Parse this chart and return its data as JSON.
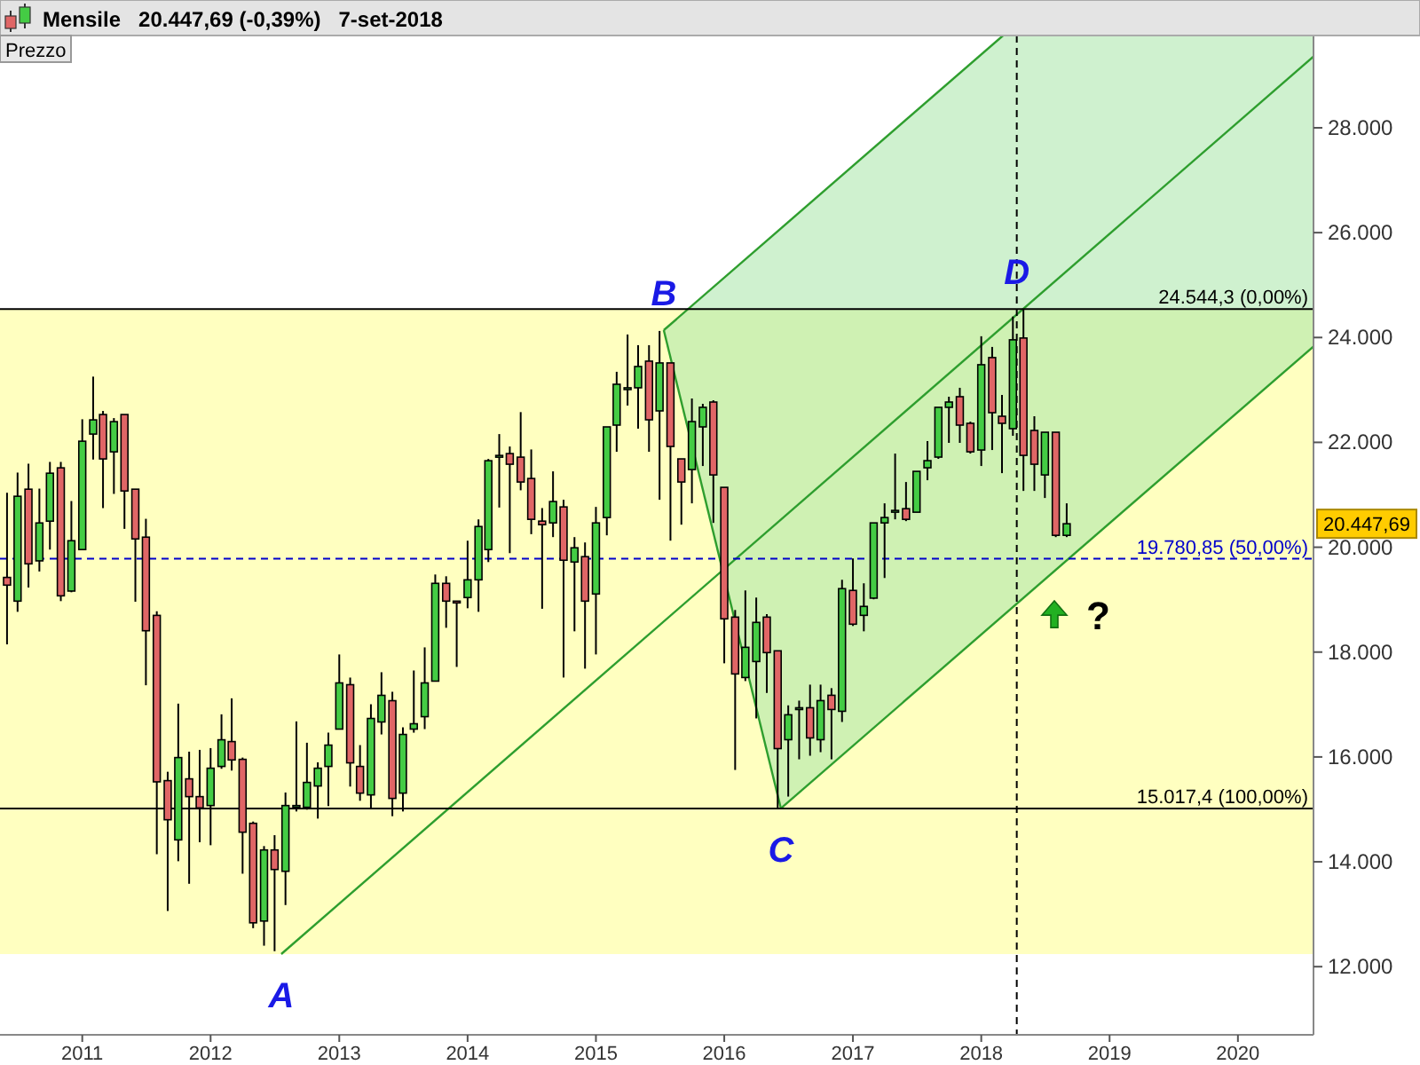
{
  "chart_data": {
    "type": "candlestick",
    "title": "Mensile   20.447,69 (-0,39%)   7-set-2018",
    "ylabel": "Prezzo",
    "x": [
      "2010-06",
      "2010-07",
      "2010-08",
      "2010-09",
      "2010-10",
      "2010-11",
      "2010-12",
      "2011-01",
      "2011-02",
      "2011-03",
      "2011-04",
      "2011-05",
      "2011-06",
      "2011-07",
      "2011-08",
      "2011-09",
      "2011-10",
      "2011-11",
      "2011-12",
      "2012-01",
      "2012-02",
      "2012-03",
      "2012-04",
      "2012-05",
      "2012-06",
      "2012-07",
      "2012-08",
      "2012-09",
      "2012-10",
      "2012-11",
      "2012-12",
      "2013-01",
      "2013-02",
      "2013-03",
      "2013-04",
      "2013-05",
      "2013-06",
      "2013-07",
      "2013-08",
      "2013-09",
      "2013-10",
      "2013-11",
      "2013-12",
      "2014-01",
      "2014-02",
      "2014-03",
      "2014-04",
      "2014-05",
      "2014-06",
      "2014-07",
      "2014-08",
      "2014-09",
      "2014-10",
      "2014-11",
      "2014-12",
      "2015-01",
      "2015-02",
      "2015-03",
      "2015-04",
      "2015-05",
      "2015-06",
      "2015-07",
      "2015-08",
      "2015-09",
      "2015-10",
      "2015-11",
      "2015-12",
      "2016-01",
      "2016-02",
      "2016-03",
      "2016-04",
      "2016-05",
      "2016-06",
      "2016-07",
      "2016-08",
      "2016-09",
      "2016-10",
      "2016-11",
      "2016-12",
      "2017-01",
      "2017-02",
      "2017-03",
      "2017-04",
      "2017-05",
      "2017-06",
      "2017-07",
      "2017-08",
      "2017-09",
      "2017-10",
      "2017-11",
      "2017-12",
      "2018-01",
      "2018-02",
      "2018-03",
      "2018-04",
      "2018-05",
      "2018-06",
      "2018-07",
      "2018-08",
      "2018-09"
    ],
    "ohlc": [
      [
        19424,
        21039,
        18147,
        19277
      ],
      [
        18972,
        21424,
        18768,
        20972
      ],
      [
        21107,
        21593,
        19231,
        19683
      ],
      [
        19740,
        21118,
        19537,
        20463
      ],
      [
        20497,
        21627,
        19955,
        21412
      ],
      [
        21514,
        21627,
        18972,
        19073
      ],
      [
        19164,
        20881,
        19141,
        20124
      ],
      [
        19955,
        22441,
        19955,
        22022
      ],
      [
        22158,
        23254,
        21672,
        22429
      ],
      [
        22531,
        22599,
        20746,
        21684
      ],
      [
        21819,
        22463,
        21017,
        22395
      ],
      [
        22531,
        22531,
        20350,
        21073
      ],
      [
        21107,
        21107,
        18960,
        20158
      ],
      [
        20192,
        20542,
        17367,
        18407
      ],
      [
        18700,
        18779,
        14146,
        15525
      ],
      [
        15548,
        15717,
        13062,
        14802
      ],
      [
        14418,
        17017,
        14011,
        15988
      ],
      [
        15582,
        16101,
        13581,
        15243
      ],
      [
        15243,
        16135,
        14373,
        15028
      ],
      [
        15073,
        16169,
        14316,
        15785
      ],
      [
        15819,
        16813,
        15774,
        16327
      ],
      [
        16293,
        17118,
        15740,
        15943
      ],
      [
        15954,
        15988,
        13773,
        14565
      ],
      [
        14734,
        14768,
        12734,
        12836
      ],
      [
        12870,
        14300,
        12400,
        14226
      ],
      [
        14226,
        14508,
        12295,
        13853
      ],
      [
        13819,
        15322,
        13175,
        15073
      ],
      [
        15040,
        16678,
        14960,
        15073
      ],
      [
        15040,
        16271,
        14994,
        15514
      ],
      [
        15446,
        15898,
        14824,
        15785
      ],
      [
        15819,
        16463,
        15062,
        16226
      ],
      [
        16531,
        17955,
        16531,
        17412
      ],
      [
        17378,
        17514,
        15435,
        15887
      ],
      [
        15819,
        16226,
        15164,
        15310
      ],
      [
        15276,
        17005,
        15028,
        16734
      ],
      [
        16667,
        17616,
        16429,
        17175
      ],
      [
        17073,
        17243,
        14870,
        15209
      ],
      [
        15310,
        16565,
        14960,
        16429
      ],
      [
        16531,
        17649,
        16463,
        16633
      ],
      [
        16768,
        18090,
        16531,
        17412
      ],
      [
        17446,
        19480,
        17446,
        19311
      ],
      [
        19311,
        19446,
        18463,
        18972
      ],
      [
        18972,
        18972,
        17717,
        18960
      ],
      [
        19040,
        20124,
        18836,
        19378
      ],
      [
        19378,
        20531,
        18768,
        20395
      ],
      [
        19955,
        21684,
        19717,
        21650
      ],
      [
        21717,
        22158,
        20757,
        21751
      ],
      [
        21786,
        21921,
        19887,
        21583
      ],
      [
        21718,
        22577,
        21086,
        21244
      ],
      [
        21311,
        21865,
        20249,
        20532
      ],
      [
        20498,
        20747,
        18826,
        20430
      ],
      [
        20464,
        21447,
        20193,
        20871
      ],
      [
        20769,
        20905,
        17515,
        19752
      ],
      [
        19718,
        20193,
        18396,
        19989
      ],
      [
        19820,
        20091,
        17684,
        18972
      ],
      [
        19108,
        20769,
        17955,
        20464
      ],
      [
        20566,
        22295,
        20227,
        22295
      ],
      [
        22329,
        23346,
        21820,
        23108
      ],
      [
        23007,
        24058,
        22702,
        23041
      ],
      [
        23041,
        23854,
        22261,
        23447
      ],
      [
        23549,
        23854,
        21820,
        22430
      ],
      [
        22600,
        24125,
        20905,
        23515
      ],
      [
        23515,
        23515,
        20125,
        21922
      ],
      [
        21685,
        21685,
        20430,
        21244
      ],
      [
        21481,
        22837,
        20837,
        22396
      ],
      [
        22295,
        22735,
        21549,
        22668
      ],
      [
        22769,
        22803,
        20464,
        21379
      ],
      [
        21142,
        21142,
        17786,
        18634
      ],
      [
        18667,
        18803,
        15752,
        17583
      ],
      [
        17515,
        19176,
        17447,
        18091
      ],
      [
        17820,
        19040,
        16735,
        18566
      ],
      [
        18667,
        18724,
        17221,
        17990
      ],
      [
        18024,
        18024,
        15020,
        16159
      ],
      [
        16329,
        16984,
        15244,
        16804
      ],
      [
        16905,
        17074,
        15955,
        16938
      ],
      [
        16938,
        17379,
        16023,
        16363
      ],
      [
        16329,
        17379,
        16091,
        17074
      ],
      [
        17176,
        17312,
        15955,
        16905
      ],
      [
        16871,
        19379,
        16667,
        19210
      ],
      [
        19176,
        19786,
        18498,
        18532
      ],
      [
        18701,
        19312,
        18396,
        18871
      ],
      [
        19029,
        20464,
        19007,
        20464
      ],
      [
        20464,
        20837,
        19413,
        20566
      ],
      [
        20690,
        21786,
        20532,
        20702
      ],
      [
        20735,
        21244,
        20498,
        20532
      ],
      [
        20668,
        21447,
        20668,
        21447
      ],
      [
        21515,
        22024,
        21278,
        21651
      ],
      [
        21719,
        22668,
        21685,
        22668
      ],
      [
        22668,
        22871,
        21990,
        22769
      ],
      [
        22871,
        23041,
        21990,
        22329
      ],
      [
        22363,
        22396,
        21786,
        21820
      ],
      [
        21854,
        24024,
        21549,
        23481
      ],
      [
        23617,
        23820,
        21854,
        22566
      ],
      [
        22498,
        22905,
        21413,
        22363
      ],
      [
        22261,
        24400,
        22125,
        23956
      ],
      [
        23990,
        24544.3,
        21074,
        21752
      ],
      [
        22227,
        22498,
        21074,
        21583
      ],
      [
        21379,
        22193,
        20939,
        22193
      ],
      [
        22193,
        22193,
        20193,
        20227
      ],
      [
        20227,
        20837,
        20193,
        20447.69
      ]
    ],
    "series": [
      {
        "type": "line",
        "color": "#2e9e2e",
        "x": [
          "2012-07-20",
          "2020-08-03"
        ],
        "values": [
          12240,
          29360
        ]
      },
      {
        "type": "line",
        "color": "#2e9e2e",
        "x": [
          "2015-07-13",
          "2018-03-04"
        ],
        "values": [
          24140,
          29760
        ]
      },
      {
        "type": "line",
        "color": "#2e9e2e",
        "x": [
          "2016-06-10",
          "2020-08-03"
        ],
        "values": [
          15020,
          23830
        ]
      },
      {
        "type": "line",
        "color": "#2e9e2e",
        "x": [
          "2015-07-13",
          "2016-06-10"
        ],
        "values": [
          24140,
          15020
        ]
      }
    ],
    "bands": [
      {
        "axis": "y",
        "from": 12240,
        "to": 24544.3,
        "color": "#ffffc0"
      }
    ],
    "ref_lines": [
      {
        "axis": "y",
        "value": 24544.3,
        "label": "24.544,3 (0,00%)",
        "color": "#000000",
        "line_style": "solid"
      },
      {
        "axis": "y",
        "value": 19780.85,
        "label": "19.780,85 (50,00%)",
        "color": "#0000cc",
        "line_style": "dashed"
      },
      {
        "axis": "y",
        "value": 15017.4,
        "label": "15.017,4 (100,00%)",
        "color": "#000000",
        "line_style": "solid"
      },
      {
        "axis": "x",
        "value": "2018-04-12",
        "color": "#000000",
        "line_style": "dashed"
      }
    ],
    "annotations": [
      {
        "text": "A",
        "x": "2012-07-20",
        "y": 12240
      },
      {
        "text": "B",
        "x": "2015-07-13",
        "y": 24140
      },
      {
        "text": "C",
        "x": "2016-06-10",
        "y": 15017.4
      },
      {
        "text": "D",
        "x": "2018-04-12",
        "y": 24544.3
      },
      "?",
      "20.447,69"
    ],
    "xlim": [
      "2010-05-12",
      "2020-08-03"
    ],
    "ylim": [
      10700,
      29760
    ],
    "xticks": [
      "2011",
      "2012",
      "2013",
      "2014",
      "2015",
      "2016",
      "2017",
      "2018",
      "2019",
      "2020"
    ],
    "yticks": [
      {
        "value": 12000,
        "label": "12.000"
      },
      {
        "value": 14000,
        "label": "14.000"
      },
      {
        "value": 16000,
        "label": "16.000"
      },
      {
        "value": 18000,
        "label": "18.000"
      },
      {
        "value": 20000,
        "label": "20.000"
      },
      {
        "value": 22000,
        "label": "22.000"
      },
      {
        "value": 24000,
        "label": "24.000"
      },
      {
        "value": 26000,
        "label": "26.000"
      },
      {
        "value": 28000,
        "label": "28.000"
      }
    ],
    "grid": false
  }
}
